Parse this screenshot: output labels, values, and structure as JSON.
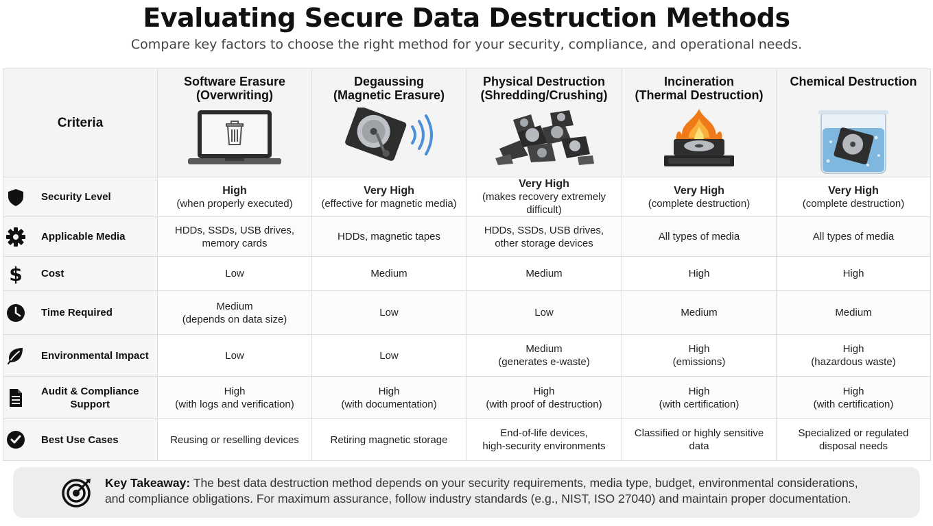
{
  "header": {
    "title": "Evaluating Secure Data Destruction Methods",
    "subtitle": "Compare key factors to choose the right method for your security, compliance, and operational needs."
  },
  "table": {
    "criteria_label": "Criteria",
    "columns": [
      {
        "title": "Software Erasure\n(Overwriting)",
        "icon": "laptop-trash-icon"
      },
      {
        "title": "Degaussing\n(Magnetic Erasure)",
        "icon": "hard-drive-magnet-icon"
      },
      {
        "title": "Physical Destruction\n(Shredding/Crushing)",
        "icon": "shredded-drives-icon"
      },
      {
        "title": "Incineration\n(Thermal Destruction)",
        "icon": "burning-drive-icon"
      },
      {
        "title": "Chemical Destruction",
        "icon": "drive-in-beaker-icon"
      }
    ],
    "rows": [
      {
        "label": "Security Level",
        "icon": "shield-icon",
        "cells": [
          {
            "main": "High",
            "sub": "(when properly executed)"
          },
          {
            "main": "Very High",
            "sub": "(effective for magnetic media)"
          },
          {
            "main": "Very High",
            "sub": "(makes recovery extremely difficult)"
          },
          {
            "main": "Very High",
            "sub": "(complete destruction)"
          },
          {
            "main": "Very High",
            "sub": "(complete destruction)"
          }
        ]
      },
      {
        "label": "Applicable Media",
        "icon": "gear-icon",
        "cells": [
          {
            "main": "HDDs, SSDs, USB drives,",
            "sub": "memory cards"
          },
          {
            "main": "HDDs, magnetic tapes",
            "sub": ""
          },
          {
            "main": "HDDs, SSDs, USB drives,",
            "sub": "other storage devices"
          },
          {
            "main": "All types of media",
            "sub": ""
          },
          {
            "main": "All types of media",
            "sub": ""
          }
        ]
      },
      {
        "label": "Cost",
        "icon": "dollar-icon",
        "cells": [
          {
            "main": "Low",
            "sub": ""
          },
          {
            "main": "Medium",
            "sub": ""
          },
          {
            "main": "Medium",
            "sub": ""
          },
          {
            "main": "High",
            "sub": ""
          },
          {
            "main": "High",
            "sub": ""
          }
        ]
      },
      {
        "label": "Time Required",
        "icon": "clock-icon",
        "cells": [
          {
            "main": "Medium",
            "sub": "(depends on data size)"
          },
          {
            "main": "Low",
            "sub": ""
          },
          {
            "main": "Low",
            "sub": ""
          },
          {
            "main": "Medium",
            "sub": ""
          },
          {
            "main": "Medium",
            "sub": ""
          }
        ]
      },
      {
        "label": "Environmental Impact",
        "icon": "leaf-icon",
        "cells": [
          {
            "main": "Low",
            "sub": ""
          },
          {
            "main": "Low",
            "sub": ""
          },
          {
            "main": "Medium",
            "sub": "(generates e-waste)"
          },
          {
            "main": "High",
            "sub": "(emissions)"
          },
          {
            "main": "High",
            "sub": "(hazardous waste)"
          }
        ]
      },
      {
        "label": "Audit & Compliance\nSupport",
        "icon": "document-icon",
        "cells": [
          {
            "main": "High",
            "sub": "(with logs and verification)"
          },
          {
            "main": "High",
            "sub": "(with documentation)"
          },
          {
            "main": "High",
            "sub": "(with proof of destruction)"
          },
          {
            "main": "High",
            "sub": "(with certification)"
          },
          {
            "main": "High",
            "sub": "(with certification)"
          }
        ]
      },
      {
        "label": "Best Use Cases",
        "icon": "check-circle-icon",
        "cells": [
          {
            "main": "Reusing or reselling devices",
            "sub": ""
          },
          {
            "main": "Retiring magnetic storage",
            "sub": ""
          },
          {
            "main": "End-of-life devices,",
            "sub": "high-security environments"
          },
          {
            "main": "Classified or highly sensitive data",
            "sub": ""
          },
          {
            "main": "Specialized or regulated",
            "sub": "disposal needs"
          }
        ]
      }
    ]
  },
  "takeaway": {
    "label": "Key Takeaway:",
    "text": "The best data destruction method depends on your security requirements, media type, budget, environmental considerations, and compliance obligations. For maximum assurance, follow industry standards (e.g., NIST, ISO 27040) and maintain proper documentation.",
    "icon": "target-icon"
  }
}
